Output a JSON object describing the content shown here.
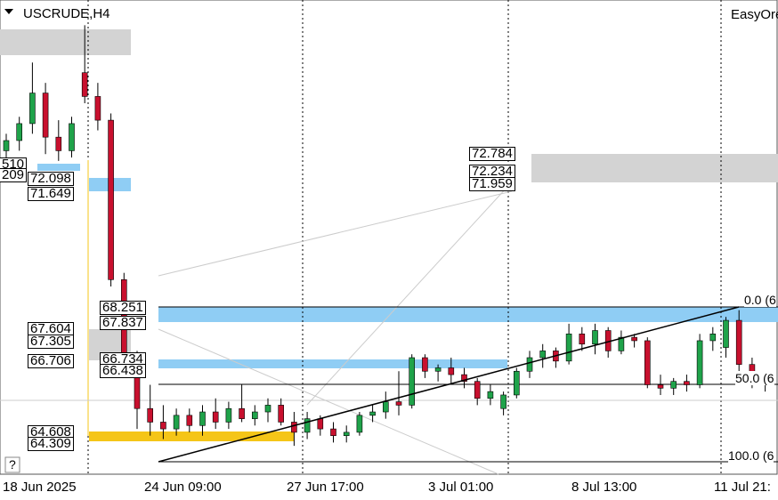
{
  "header": {
    "symbol": "USCRUDE,H4",
    "panel": "EasyOre"
  },
  "help": "?",
  "price_labels": [
    "510",
    "209",
    "72.098",
    "71.649",
    "68.251",
    "67.837",
    "67.604",
    "67.305",
    "66.706",
    "66.734",
    "66.438",
    "64.608",
    "64.309",
    "72.784",
    "72.234",
    "71.959"
  ],
  "fib_labels": [
    "0.0 (6",
    "50.0 (6",
    "100.0 (6"
  ],
  "time_axis": [
    "18 Jun 2025",
    "24 Jun 09:00",
    "27 Jun 17:00",
    "3 Jul 01:00",
    "8 Jul 13:00",
    "11 Jul 21:"
  ],
  "candles": {
    "open": [
      72.9,
      73.2,
      73.7,
      74.6,
      73.3,
      72.9,
      75.2,
      74.5,
      73.8,
      69.1,
      66.7,
      65.3,
      64.9,
      64.7,
      65.1,
      64.8,
      65.2,
      64.9,
      65.3,
      65.0,
      65.2,
      65.4,
      64.9,
      64.6,
      65.0,
      64.7,
      64.5,
      64.6,
      65.1,
      65.2,
      65.5,
      65.4,
      66.8,
      66.4,
      66.5,
      66.3,
      66.1,
      65.6,
      65.3,
      65.7,
      66.4,
      66.8,
      67.0,
      66.7,
      67.5,
      67.2,
      67.6,
      67.0,
      67.4,
      67.3,
      66.0,
      65.9,
      66.1,
      66.0,
      67.3,
      67.1,
      67.9,
      66.6,
      66.2
    ],
    "high": [
      73.4,
      73.9,
      75.5,
      74.9,
      73.8,
      73.9,
      76.6,
      74.9,
      74.0,
      69.3,
      67.0,
      66.0,
      65.4,
      65.3,
      65.3,
      65.4,
      65.6,
      65.5,
      66.0,
      65.4,
      65.6,
      65.6,
      65.2,
      65.2,
      65.1,
      64.9,
      64.8,
      65.2,
      65.4,
      65.8,
      66.4,
      66.9,
      66.9,
      66.6,
      66.8,
      66.5,
      66.2,
      66.0,
      65.8,
      66.5,
      67.0,
      67.2,
      67.1,
      67.8,
      67.7,
      67.8,
      67.7,
      67.6,
      67.5,
      67.4,
      66.3,
      66.2,
      66.3,
      67.5,
      67.7,
      68.0,
      68.2,
      66.8,
      66.3
    ],
    "low": [
      72.5,
      72.9,
      73.4,
      72.8,
      72.6,
      72.7,
      74.3,
      73.5,
      68.9,
      66.4,
      64.7,
      64.5,
      64.4,
      64.5,
      64.6,
      64.5,
      64.7,
      64.7,
      64.9,
      64.8,
      64.9,
      64.8,
      64.2,
      64.4,
      64.5,
      64.3,
      64.3,
      64.5,
      64.9,
      65.0,
      65.1,
      65.3,
      66.2,
      66.1,
      66.0,
      65.9,
      65.4,
      65.4,
      65.1,
      65.6,
      66.2,
      66.5,
      66.5,
      66.6,
      67.0,
      66.9,
      66.8,
      66.9,
      67.1,
      65.9,
      65.7,
      65.7,
      65.8,
      65.9,
      67.0,
      66.8,
      66.4,
      65.9,
      65.8
    ],
    "close": [
      73.2,
      73.7,
      74.6,
      73.3,
      72.9,
      73.7,
      74.5,
      73.8,
      69.1,
      66.7,
      65.3,
      64.9,
      64.7,
      65.1,
      64.8,
      65.2,
      64.9,
      65.3,
      65.0,
      65.2,
      65.4,
      64.9,
      64.6,
      65.0,
      64.7,
      64.5,
      64.6,
      65.1,
      65.2,
      65.5,
      65.4,
      66.8,
      66.4,
      66.5,
      66.3,
      66.1,
      65.6,
      65.8,
      65.7,
      66.4,
      66.8,
      67.0,
      66.7,
      67.5,
      67.2,
      67.6,
      67.0,
      67.4,
      67.3,
      66.0,
      65.9,
      66.1,
      66.0,
      67.3,
      67.5,
      67.9,
      66.6,
      66.2,
      66.0
    ]
  }
}
